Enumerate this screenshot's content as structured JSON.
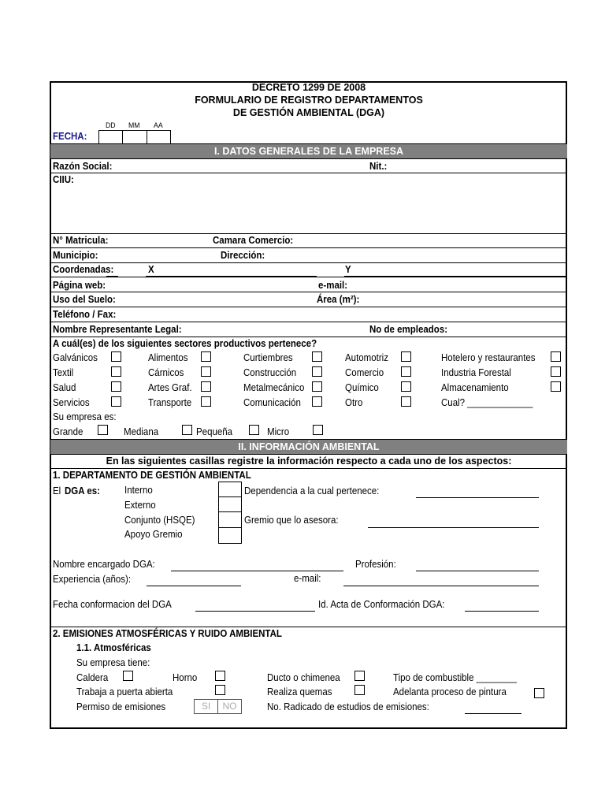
{
  "header": {
    "line1": "DECRETO 1299 DE 2008",
    "line2": "FORMULARIO DE REGISTRO DEPARTAMENTOS",
    "line3": "DE GESTIÓN AMBIENTAL (DGA)",
    "date_dd": "DD",
    "date_mm": "MM",
    "date_aa": "AA",
    "fecha_label": "FECHA:"
  },
  "section1": {
    "title": "I. DATOS GENERALES DE LA EMPRESA",
    "razon_social": "Razón Social:",
    "nit": "Nit.:",
    "ciiu": "CIIU:",
    "matricula": "N° Matricula:",
    "camara": "Camara Comercio:",
    "municipio": "Municipio:",
    "direccion": "Dirección:",
    "coordenadas": "Coordenadas:",
    "x": "X",
    "y": "Y",
    "web": "Página web:",
    "email": "e-mail:",
    "uso_suelo": "Uso del Suelo:",
    "area": "Área (m²):",
    "telefono": "Teléfono / Fax:",
    "representante": "Nombre Representante Legal:",
    "empleados": "No de empleados:",
    "sectores_q": "A cuál(es) de los siguientes sectores productivos pertenece?",
    "sectors": [
      [
        "Galvánicos",
        "Alimentos",
        "Curtiembres",
        "Automotriz",
        "Hotelero y restaurantes"
      ],
      [
        "Textil",
        "Cárnicos",
        "Construcción",
        "Comercio",
        "Industria Forestal"
      ],
      [
        "Salud",
        "Artes Graf.",
        "Metalmecánico",
        "Químico",
        "Almacenamiento"
      ],
      [
        "Servicios",
        "Transporte",
        "Comunicación",
        "Otro",
        "Cual? _____________"
      ]
    ],
    "su_empresa": "Su empresa es:",
    "sizes": [
      "Grande",
      "Mediana",
      "Pequeña",
      "Micro"
    ]
  },
  "section2": {
    "title": "II.  INFORMACIÓN AMBIENTAL",
    "instruction": "En las siguientes casillas registre la información respecto a cada uno de los aspectos:",
    "dga_title": "1. DEPARTAMENTO DE GESTIÓN AMBIENTAL",
    "el": "El",
    "dga_es": "DGA es:",
    "types": [
      "Interno",
      "Externo",
      "Conjunto (HSQE)",
      "Apoyo Gremio"
    ],
    "dependencia": "Dependencia a la cual pertenece:",
    "gremio": "Gremio que lo asesora:",
    "encargado": "Nombre encargado DGA:",
    "profesion": "Profesión:",
    "experiencia": "Experiencia (años):",
    "email": "e-mail:",
    "fecha_conf": "Fecha conformacion del DGA",
    "id_acta": "Id. Acta de Conformación DGA:",
    "emis_title": "2. EMISIONES  ATMOSFÉRICAS Y  RUIDO AMBIENTAL",
    "atm": "1.1. Atmosféricas",
    "tiene": "Su empresa tiene:",
    "caldera": "Caldera",
    "horno": "Horno",
    "ducto": "Ducto o chimenea",
    "combustible": "Tipo de combustible ________",
    "puerta": "Trabaja a puerta abierta",
    "quemas": "Realiza quemas",
    "pintura": "Adelanta proceso de pintura",
    "permiso": "Permiso de emisiones",
    "si": "SI",
    "no": "NO",
    "radicado": "No. Radicado de estudios de emisiones:"
  }
}
